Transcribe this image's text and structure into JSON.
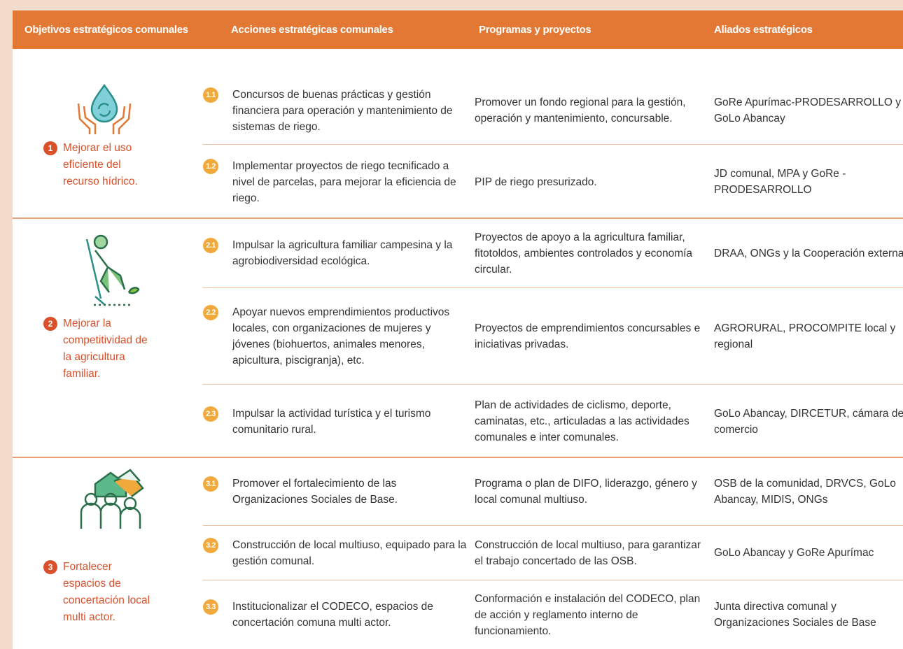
{
  "header": {
    "columns": [
      "Objetivos estratégicos comunales",
      "Acciones estratégicas comunales",
      "Programas y proyectos",
      "Aliados estratégicos"
    ]
  },
  "groups": [
    {
      "number": "1",
      "objective": "Mejorar el uso eficiente del recurso hídrico.",
      "actions": [
        {
          "number": "1.1",
          "action": "Concursos de buenas prácticas y gestión financiera para operación y mantenimiento de sistemas de riego.",
          "programs": "Promover un fondo regional para la gestión, operación y mantenimiento, concursable.",
          "allies": "GoRe Apurímac-PRODESARROLLO y GoLo Abancay"
        },
        {
          "number": "1.2",
          "action": "Implementar proyectos de riego tecnificado a nivel de parcelas, para mejorar la eficiencia de riego.",
          "programs": "PIP de riego presurizado.",
          "allies": "JD comunal, MPA y GoRe - PRODESARROLLO"
        }
      ]
    },
    {
      "number": "2",
      "objective": "Mejorar la competitividad de la agricultura familiar.",
      "actions": [
        {
          "number": "2.1",
          "action": "Impulsar la agricultura familiar campesina y la agrobiodiversidad ecológica.",
          "programs": "Proyectos de apoyo a la agricultura familiar, fitotoldos, ambientes controlados y economía circular.",
          "allies": "DRAA, ONGs y la Cooperación externa"
        },
        {
          "number": "2.2",
          "action": "Apoyar nuevos emprendimientos productivos locales, con organizaciones de mujeres y jóvenes (biohuertos, animales menores, apicultura, piscigranja), etc.",
          "programs": "Proyectos de emprendimientos concursables e iniciativas privadas.",
          "allies": "AGRORURAL, PROCOMPITE local y regional"
        },
        {
          "number": "2.3",
          "action": "Impulsar la actividad turística y el turismo comunitario rural.",
          "programs": "Plan de actividades de ciclismo, deporte, caminatas, etc., articuladas a las actividades comunales e inter comunales.",
          "allies": "GoLo Abancay, DIRCETUR, cámara de comercio"
        }
      ]
    },
    {
      "number": "3",
      "objective": "Fortalecer espacios de concertación local multi actor.",
      "actions": [
        {
          "number": "3.1",
          "action": "Promover el fortalecimiento de las Organizaciones Sociales de Base.",
          "programs": "Programa o plan de DIFO, liderazgo, género y local comunal multiuso.",
          "allies": "OSB de la comunidad, DRVCS, GoLo Abancay, MIDIS, ONGs"
        },
        {
          "number": "3.2",
          "action": "Construcción de local multiuso, equipado para la gestión comunal.",
          "programs": "Construcción de local multiuso, para garantizar el trabajo concertado de las OSB.",
          "allies": "GoLo Abancay y GoRe Apurímac"
        },
        {
          "number": "3.3",
          "action": "Institucionalizar el CODECO, espacios de concertación comuna multi actor.",
          "programs": "Conformación e instalación del CODECO, plan de acción y reglamento interno de funcionamiento.",
          "allies": "Junta directiva comunal  y Organizaciones Sociales de Base"
        }
      ]
    }
  ]
}
